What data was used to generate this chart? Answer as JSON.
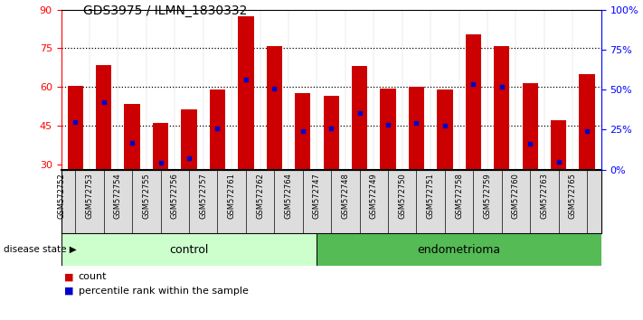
{
  "title": "GDS3975 / ILMN_1830332",
  "samples": [
    "GSM572752",
    "GSM572753",
    "GSM572754",
    "GSM572755",
    "GSM572756",
    "GSM572757",
    "GSM572761",
    "GSM572762",
    "GSM572764",
    "GSM572747",
    "GSM572748",
    "GSM572749",
    "GSM572750",
    "GSM572751",
    "GSM572758",
    "GSM572759",
    "GSM572760",
    "GSM572763",
    "GSM572765"
  ],
  "counts": [
    60.5,
    68.5,
    53.5,
    46.0,
    51.5,
    59.0,
    87.5,
    76.0,
    57.5,
    56.5,
    68.0,
    59.5,
    60.0,
    59.0,
    80.5,
    76.0,
    61.5,
    47.0,
    65.0
  ],
  "percentiles": [
    46.5,
    54.0,
    38.5,
    30.5,
    32.5,
    44.0,
    63.0,
    59.5,
    43.0,
    44.0,
    50.0,
    45.5,
    46.0,
    45.0,
    61.0,
    60.0,
    38.0,
    31.0,
    43.0
  ],
  "control_count": 9,
  "ylim_left": [
    28,
    90
  ],
  "yticks_left": [
    30,
    45,
    60,
    75,
    90
  ],
  "ylim_right": [
    0,
    100
  ],
  "yticks_right": [
    0,
    25,
    50,
    75,
    100
  ],
  "bar_color": "#cc0000",
  "percentile_color": "#0000cc",
  "control_color": "#ccffcc",
  "endometrioma_color": "#55bb55",
  "bg_color": "#ffffff",
  "label_bg_color": "#dddddd",
  "bar_width": 0.55
}
